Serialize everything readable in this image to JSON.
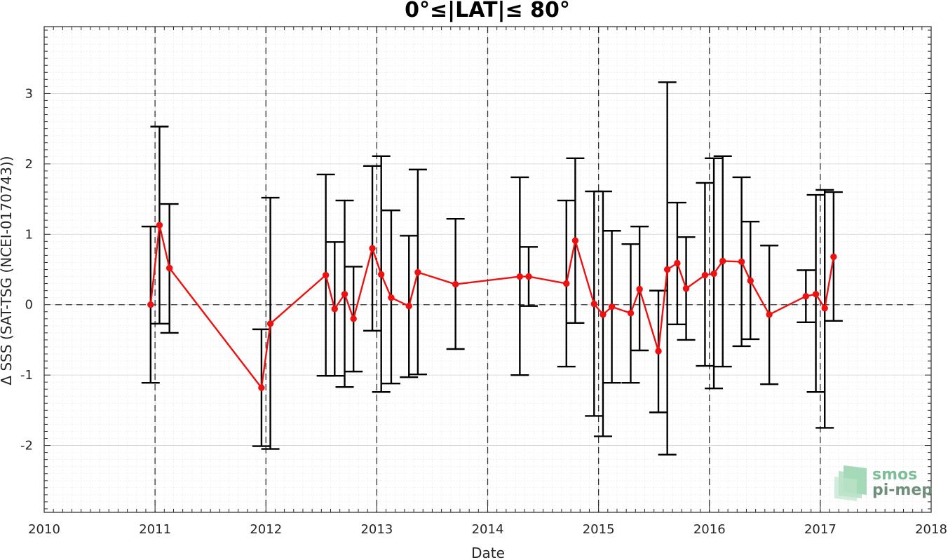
{
  "chart_data": {
    "type": "line",
    "title": "0°≤|LAT|≤ 80°",
    "xlabel": "Date",
    "ylabel": "Δ SSS (SAT-TSG (NCEI-0170743))",
    "xlim": [
      2010,
      2018
    ],
    "ylim": [
      -2.95,
      3.95
    ],
    "x_ticks": [
      2010,
      2011,
      2012,
      2013,
      2014,
      2015,
      2016,
      2017,
      2018
    ],
    "y_ticks": [
      -2,
      -1,
      0,
      1,
      2,
      3
    ],
    "grid": true,
    "minor_grid": true,
    "year_lines": [
      2011,
      2012,
      2013,
      2014,
      2015,
      2016,
      2017
    ],
    "zero_line": 0,
    "series": [
      {
        "color": "#ee1111",
        "x": [
          2010.96,
          2011.04,
          2011.13,
          2011.96,
          2012.04,
          2012.54,
          2012.62,
          2012.71,
          2012.79,
          2012.96,
          2013.04,
          2013.13,
          2013.29,
          2013.37,
          2013.71,
          2014.29,
          2014.37,
          2014.71,
          2014.79,
          2014.96,
          2015.04,
          2015.12,
          2015.29,
          2015.37,
          2015.54,
          2015.62,
          2015.71,
          2015.79,
          2015.96,
          2016.04,
          2016.12,
          2016.29,
          2016.37,
          2016.54,
          2016.87,
          2016.96,
          2017.04,
          2017.12
        ],
        "y": [
          0.0,
          1.13,
          0.52,
          -1.18,
          -0.27,
          0.42,
          -0.06,
          0.15,
          -0.2,
          0.8,
          0.43,
          0.1,
          -0.02,
          0.46,
          0.29,
          0.4,
          0.4,
          0.3,
          0.91,
          0.01,
          -0.14,
          -0.03,
          -0.12,
          0.22,
          -0.66,
          0.5,
          0.59,
          0.23,
          0.42,
          0.44,
          0.62,
          0.61,
          0.34,
          -0.14,
          0.12,
          0.15,
          -0.05,
          0.68
        ],
        "err_lower": [
          -1.11,
          -0.27,
          -0.4,
          -2.01,
          -2.05,
          -1.01,
          -1.01,
          -1.17,
          -0.95,
          -0.37,
          -1.24,
          -1.12,
          -1.03,
          -0.99,
          -0.63,
          -1.0,
          -0.02,
          -0.88,
          -0.26,
          -1.58,
          -1.87,
          -1.11,
          -1.11,
          -0.65,
          -1.53,
          -2.13,
          -0.28,
          -0.5,
          -0.87,
          -1.19,
          -0.88,
          -0.59,
          -0.49,
          -1.13,
          -0.25,
          -1.24,
          -1.75,
          -0.23
        ],
        "err_upper": [
          1.11,
          2.53,
          1.43,
          -0.35,
          1.52,
          1.85,
          0.89,
          1.48,
          0.54,
          1.97,
          2.11,
          1.34,
          0.98,
          1.92,
          1.22,
          1.81,
          0.82,
          1.48,
          2.08,
          1.61,
          1.61,
          1.05,
          0.86,
          1.11,
          0.2,
          3.16,
          1.45,
          0.96,
          1.73,
          2.08,
          2.11,
          1.81,
          1.18,
          0.84,
          0.49,
          1.56,
          1.63,
          1.6
        ]
      }
    ]
  },
  "logo": {
    "line1": "smos",
    "line2": "pi-mep",
    "color1": "#7dbd97",
    "color2": "#6f8f7c"
  }
}
